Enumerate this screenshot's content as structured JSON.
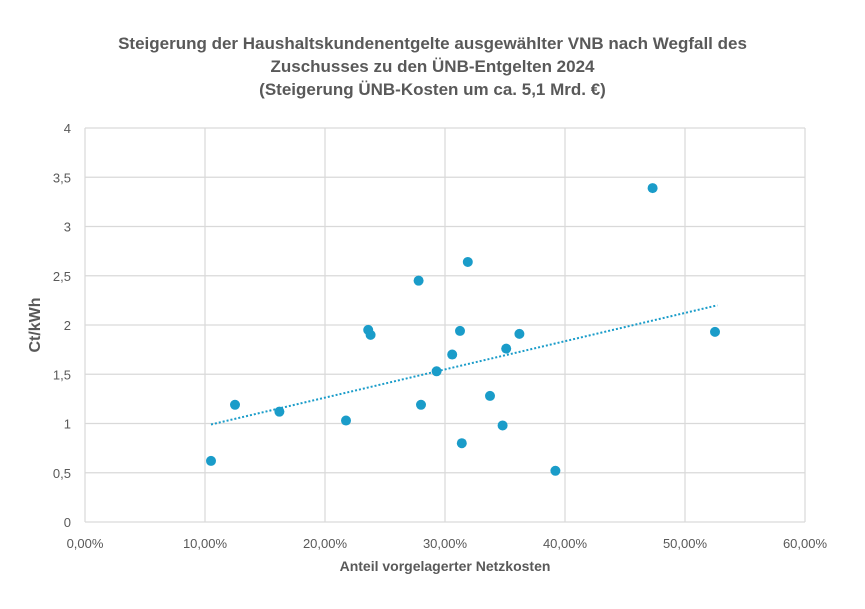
{
  "chart_data": {
    "type": "scatter",
    "title": [
      "Steigerung der Haushaltskundenentgelte ausgewählter VNB nach Wegfall des",
      "Zuschusses zu den ÜNB-Entgelten 2024",
      "(Steigerung ÜNB-Kosten um ca. 5,1 Mrd. €)"
    ],
    "xlabel": "Anteil vorgelagerter Netzkosten",
    "ylabel": "Ct/kWh",
    "xlim": [
      0,
      60
    ],
    "ylim": [
      0,
      4
    ],
    "x_ticks": [
      0,
      10,
      20,
      30,
      40,
      50,
      60
    ],
    "x_tick_labels": [
      "0,00%",
      "10,00%",
      "20,00%",
      "30,00%",
      "40,00%",
      "50,00%",
      "60,00%"
    ],
    "y_ticks": [
      0,
      0.5,
      1,
      1.5,
      2,
      2.5,
      3,
      3.5,
      4
    ],
    "y_tick_labels": [
      "0",
      "0,5",
      "1",
      "1,5",
      "2",
      "2,5",
      "3",
      "3,5",
      "4"
    ],
    "grid": true,
    "color": "#1a9cc9",
    "points": [
      [
        10.5,
        0.62
      ],
      [
        12.5,
        1.19
      ],
      [
        16.2,
        1.12
      ],
      [
        21.75,
        1.03
      ],
      [
        23.6,
        1.95
      ],
      [
        23.8,
        1.9
      ],
      [
        27.8,
        2.45
      ],
      [
        28.0,
        1.19
      ],
      [
        29.3,
        1.53
      ],
      [
        30.6,
        1.7
      ],
      [
        31.25,
        1.94
      ],
      [
        31.4,
        0.8
      ],
      [
        31.9,
        2.64
      ],
      [
        33.75,
        1.28
      ],
      [
        34.8,
        0.98
      ],
      [
        35.1,
        1.76
      ],
      [
        36.2,
        1.91
      ],
      [
        39.2,
        0.52
      ],
      [
        47.3,
        3.39
      ],
      [
        52.5,
        1.93
      ]
    ],
    "trendline": {
      "type": "linear",
      "style": "dotted",
      "from": [
        10.5,
        0.99
      ],
      "to": [
        52.7,
        2.2
      ]
    }
  }
}
